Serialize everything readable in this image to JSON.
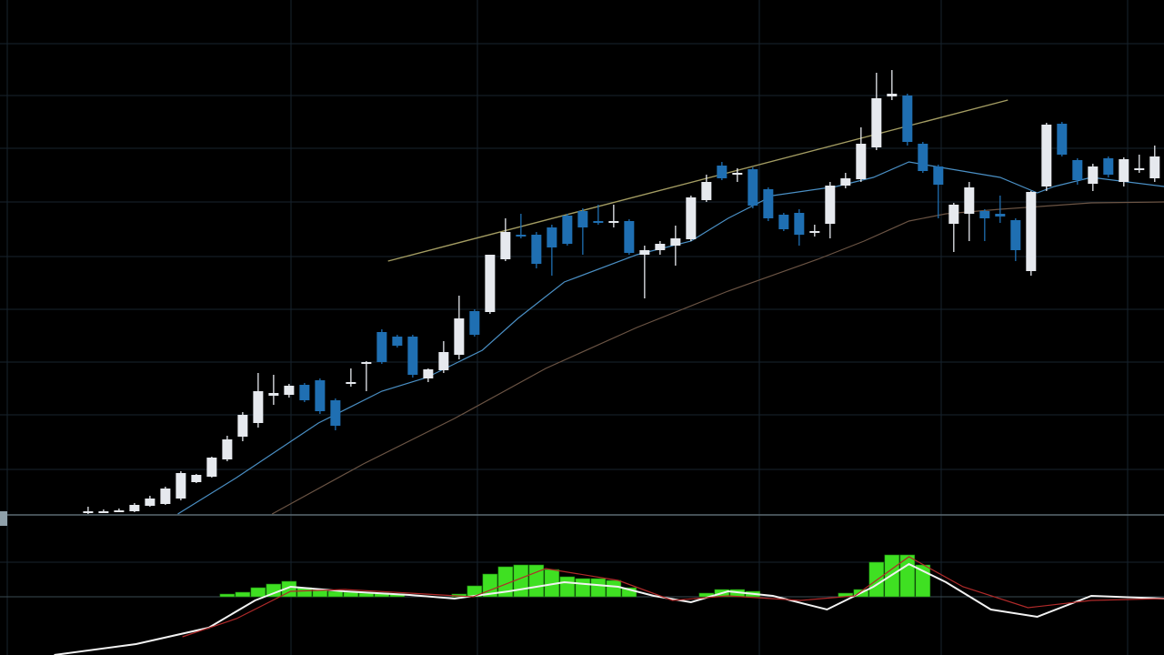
{
  "chart_data": [
    {
      "type": "candlestick",
      "xlim": [
        -5.7,
        69.6
      ],
      "ylim": [
        0,
        565
      ],
      "up_color": "#e6e9ee",
      "down_color": "#1f6fb2",
      "open": [
        2,
        2,
        3,
        3,
        9,
        11,
        17,
        35,
        41,
        60,
        85,
        100,
        130,
        131,
        142,
        147,
        125,
        143,
        166,
        200,
        195,
        195,
        149,
        158,
        175,
        223,
        222,
        280,
        307,
        307,
        315,
        328,
        333,
        322,
        320,
        322,
        285,
        290,
        295,
        302,
        345,
        383,
        373,
        379,
        357,
        329,
        331,
        310,
        319,
        361,
        368,
        403,
        459,
        460,
        407,
        382,
        319,
        330,
        333,
        330,
        323,
        267,
        360,
        429,
        389,
        363,
        391,
        365,
        378,
        369
      ],
      "high": [
        8,
        5,
        6,
        12,
        20,
        30,
        47,
        44,
        63,
        86,
        112,
        155,
        153,
        143,
        144,
        149,
        127,
        160,
        168,
        203,
        197,
        197,
        160,
        190,
        240,
        225,
        285,
        325,
        330,
        310,
        318,
        330,
        336,
        340,
        340,
        324,
        295,
        300,
        317,
        350,
        373,
        387,
        380,
        381,
        359,
        331,
        335,
        318,
        365,
        375,
        425,
        485,
        488,
        462,
        409,
        384,
        342,
        365,
        335,
        350,
        325,
        355,
        430,
        431,
        391,
        385,
        393,
        392,
        395,
        405
      ],
      "low": [
        0,
        1,
        2,
        2,
        8,
        10,
        15,
        34,
        40,
        58,
        80,
        95,
        120,
        128,
        123,
        110,
        92,
        140,
        135,
        165,
        183,
        150,
        145,
        155,
        170,
        195,
        220,
        278,
        303,
        270,
        262,
        295,
        285,
        318,
        315,
        285,
        237,
        285,
        273,
        300,
        343,
        367,
        365,
        336,
        322,
        311,
        295,
        305,
        303,
        358,
        365,
        400,
        455,
        405,
        375,
        325,
        288,
        300,
        300,
        320,
        278,
        262,
        355,
        393,
        362,
        355,
        370,
        360,
        375,
        365
      ],
      "close": [
        3,
        3,
        4,
        10,
        17,
        28,
        45,
        43,
        62,
        82,
        109,
        135,
        133,
        141,
        125,
        113,
        97,
        145,
        167,
        167,
        185,
        153,
        159,
        178,
        215,
        197,
        285,
        310,
        305,
        275,
        293,
        297,
        315,
        320,
        322,
        287,
        290,
        297,
        303,
        348,
        365,
        369,
        375,
        339,
        325,
        313,
        307,
        311,
        361,
        369,
        407,
        457,
        462,
        409,
        377,
        362,
        340,
        359,
        325,
        327,
        290,
        354,
        428,
        395,
        367,
        382,
        373,
        390,
        380,
        393
      ],
      "trend": {
        "color": "#a39c62",
        "x": [
          19.4,
          59.5
        ],
        "values": [
          278,
          455
        ]
      },
      "lines": [
        {
          "color": "#4a8fc4",
          "x": [
            5.8,
            9.6,
            14.9,
            19,
            21.9,
            25.5,
            27.8,
            30.8,
            35.5,
            39,
            41.4,
            44.3,
            48.4,
            50.8,
            53.1,
            55.5,
            59,
            61.4,
            62.5,
            64.9,
            69.6
          ],
          "values": [
            0,
            40,
            100,
            135,
            150,
            180,
            215,
            255,
            285,
            300,
            325,
            350,
            360,
            370,
            387,
            380,
            370,
            353,
            360,
            370,
            360
          ]
        },
        {
          "color": "#6b5444",
          "x": [
            11.9,
            17.8,
            23.7,
            29.6,
            35.5,
            41.4,
            47.2,
            50.2,
            53.1,
            55.5,
            59,
            64.9,
            69.6
          ],
          "values": [
            0,
            55,
            105,
            160,
            205,
            245,
            280,
            300,
            322,
            330,
            335,
            342,
            343
          ]
        }
      ]
    },
    {
      "type": "macd",
      "xlim": [
        -5.7,
        69.6
      ],
      "ylim": [
        -64,
        76
      ],
      "histogram": {
        "color": "#3fe022",
        "x": [
          9,
          10,
          11,
          12,
          13,
          14,
          15,
          16,
          17,
          18,
          19,
          20,
          24,
          25,
          26,
          27,
          28,
          29,
          30,
          31,
          32,
          33,
          34,
          35,
          40,
          41,
          42,
          43,
          49,
          50,
          51,
          52,
          53,
          54
        ],
        "values": [
          3,
          5,
          10,
          14,
          17,
          10,
          8,
          6,
          5,
          4,
          4,
          3,
          3,
          12,
          25,
          33,
          35,
          35,
          30,
          22,
          20,
          20,
          18,
          10,
          4,
          8,
          8,
          6,
          4,
          8,
          38,
          46,
          46,
          35
        ]
      },
      "lines": [
        {
          "color": "#f2f2f2",
          "x": [
            -2.2,
            3.1,
            7.8,
            10.8,
            13.1,
            16.6,
            20.8,
            23.7,
            27.2,
            30.8,
            34.3,
            36.6,
            39,
            41.4,
            44.3,
            47.8,
            50.8,
            53.1,
            55.5,
            58.4,
            61.4,
            64.9,
            69.6
          ],
          "values": [
            -64,
            -52,
            -34,
            -4,
            11,
            6,
            2,
            -2,
            6,
            16,
            11,
            1,
            -6,
            6,
            1,
            -14,
            11,
            36,
            16,
            -14,
            -22,
            1,
            -2
          ]
        },
        {
          "color": "#b02a2a",
          "x": [
            6.1,
            9.6,
            13.1,
            16.6,
            20.8,
            24.9,
            29.6,
            34.3,
            37.8,
            41.4,
            46.1,
            49.6,
            53.1,
            56.6,
            60.8,
            64.9,
            69.6
          ],
          "values": [
            -44,
            -24,
            6,
            8,
            4,
            0,
            31,
            18,
            -4,
            1,
            -4,
            1,
            44,
            11,
            -12,
            -4,
            -2
          ]
        }
      ]
    }
  ]
}
